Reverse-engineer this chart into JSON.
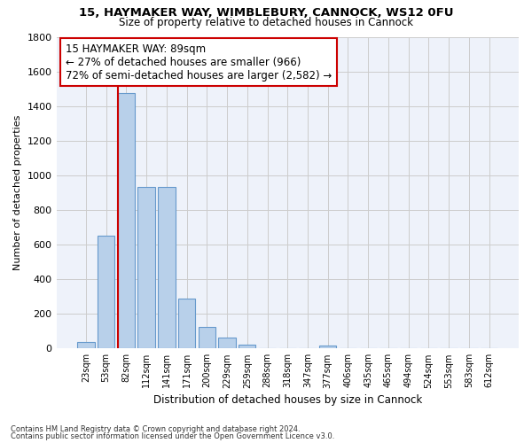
{
  "title1": "15, HAYMAKER WAY, WIMBLEBURY, CANNOCK, WS12 0FU",
  "title2": "Size of property relative to detached houses in Cannock",
  "xlabel": "Distribution of detached houses by size in Cannock",
  "ylabel": "Number of detached properties",
  "bar_labels": [
    "23sqm",
    "53sqm",
    "82sqm",
    "112sqm",
    "141sqm",
    "171sqm",
    "200sqm",
    "229sqm",
    "259sqm",
    "288sqm",
    "318sqm",
    "347sqm",
    "377sqm",
    "406sqm",
    "435sqm",
    "465sqm",
    "494sqm",
    "524sqm",
    "553sqm",
    "583sqm",
    "612sqm"
  ],
  "bar_values": [
    38,
    650,
    1475,
    935,
    935,
    290,
    125,
    65,
    22,
    0,
    0,
    0,
    15,
    0,
    0,
    0,
    0,
    0,
    0,
    0,
    0
  ],
  "bar_color": "#b8d0ea",
  "bar_edge_color": "#6699cc",
  "vline_x_index": 2,
  "annotation_text": "15 HAYMAKER WAY: 89sqm\n← 27% of detached houses are smaller (966)\n72% of semi-detached houses are larger (2,582) →",
  "annotation_box_color": "#ffffff",
  "annotation_border_color": "#cc0000",
  "vline_color": "#cc0000",
  "ylim": [
    0,
    1800
  ],
  "yticks": [
    0,
    200,
    400,
    600,
    800,
    1000,
    1200,
    1400,
    1600,
    1800
  ],
  "grid_color": "#cccccc",
  "bg_color": "#eef2fa",
  "footnote1": "Contains HM Land Registry data © Crown copyright and database right 2024.",
  "footnote2": "Contains public sector information licensed under the Open Government Licence v3.0.",
  "fig_width": 6.0,
  "fig_height": 5.0,
  "dpi": 100
}
